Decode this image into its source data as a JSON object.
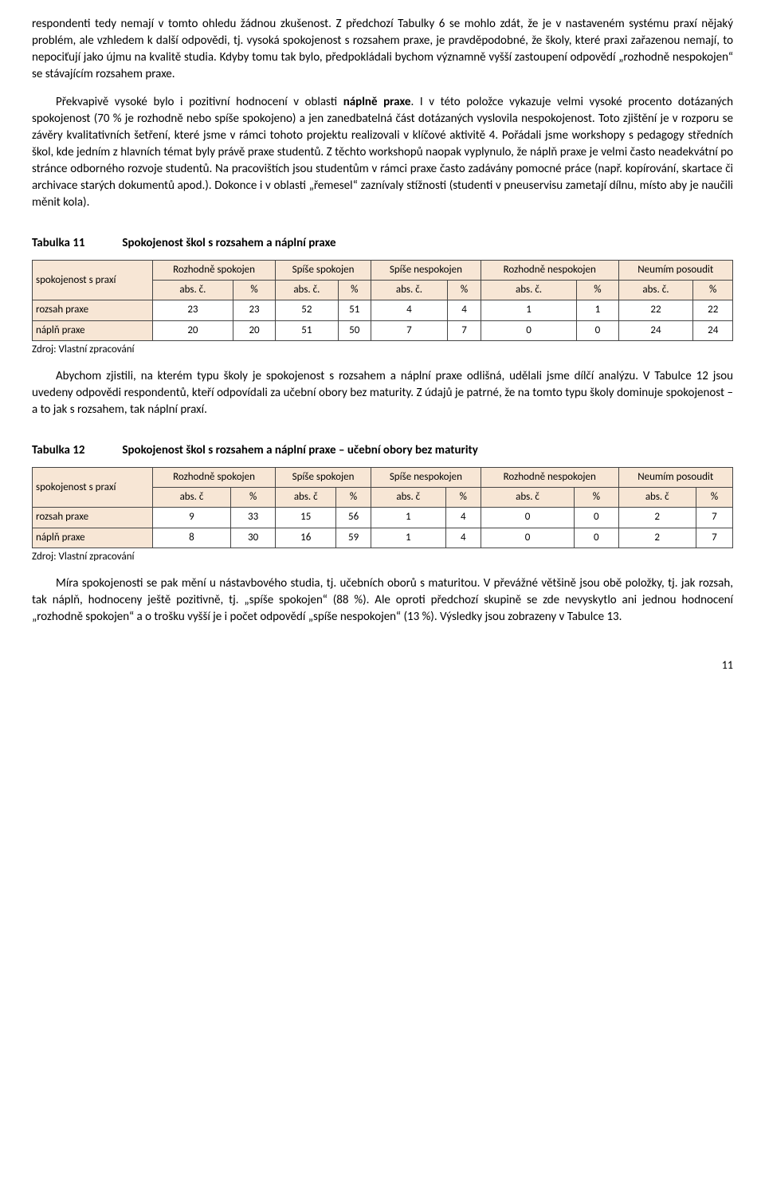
{
  "para1": "respondenti tedy nemají v tomto ohledu žádnou zkušenost. Z předchozí Tabulky 6 se mohlo zdát, že je v nastaveném systému praxí nějaký problém, ale vzhledem k další odpovědi, tj. vysoká spokojenost s rozsahem praxe, je pravděpodobné, že školy, které praxi zařazenou nemají, to nepociťují jako újmu na kvalitě studia. Kdyby tomu tak bylo, předpokládali bychom významně vyšší zastoupení odpovědí „rozhodně nespokojen“ se stávajícím rozsahem praxe.",
  "para2a": "Překvapivě vysoké bylo i pozitivní hodnocení v oblasti ",
  "para2b": "náplně praxe",
  "para2c": ". I v této položce vykazuje velmi vysoké procento dotázaných spokojenost (70 % je rozhodně nebo spíše spokojeno) a jen zanedbatelná část dotázaných vyslovila nespokojenost. Toto zjištění je v rozporu se závěry kvalitativních šetření, které jsme v rámci tohoto projektu realizovali v klíčové aktivitě 4. Pořádali jsme workshopy s pedagogy středních škol, kde jedním z hlavních témat byly právě praxe studentů. Z těchto workshopů naopak vyplynulo, že náplň praxe je velmi často neadekvátní po stránce odborného rozvoje studentů. Na pracovištích jsou studentům v rámci praxe často zadávány pomocné práce (např. kopírování, skartace či archivace starých dokumentů apod.). Dokonce i v oblasti „řemesel“ zaznívaly stížnosti (studenti v pneuservisu zametají dílnu, místo aby je naučili měnit kola).",
  "t11_num": "Tabulka 11",
  "t11_title": "Spokojenost škol s rozsahem a náplní praxe",
  "t11_corner": "spokojenost s praxí",
  "t11_cols": [
    "Rozhodně spokojen",
    "Spíše spokojen",
    "Spíše nespokojen",
    "Rozhodně nespokojen",
    "Neumím posoudit"
  ],
  "t11_sub_abs": "abs. č.",
  "t11_sub_pct": "%",
  "t11_rows": [
    {
      "label": "rozsah praxe",
      "v": [
        "23",
        "23",
        "52",
        "51",
        "4",
        "4",
        "1",
        "1",
        "22",
        "22"
      ]
    },
    {
      "label": "náplň praxe",
      "v": [
        "20",
        "20",
        "51",
        "50",
        "7",
        "7",
        "0",
        "0",
        "24",
        "24"
      ]
    }
  ],
  "t11_source": "Zdroj: Vlastní zpracování",
  "para3": "Abychom zjistili, na kterém typu školy je spokojenost s rozsahem a náplní praxe odlišná, udělali jsme dílčí analýzu.  V  Tabulce 12 jsou uvedeny odpovědi respondentů, kteří odpovídali za učební obory bez maturity. Z údajů je patrné, že na tomto typu školy dominuje spokojenost – a to jak s rozsahem, tak náplní praxí.",
  "t12_num": "Tabulka 12",
  "t12_title": "Spokojenost škol s rozsahem a náplní praxe – učební obory bez maturity",
  "t12_corner": "spokojenost s praxí",
  "t12_cols": [
    "Rozhodně spokojen",
    "Spíše spokojen",
    "Spíše nespokojen",
    "Rozhodně nespokojen",
    "Neumím posoudit"
  ],
  "t12_sub_abs": "abs. č",
  "t12_sub_pct": "%",
  "t12_rows": [
    {
      "label": "rozsah praxe",
      "v": [
        "9",
        "33",
        "15",
        "56",
        "1",
        "4",
        "0",
        "0",
        "2",
        "7"
      ]
    },
    {
      "label": "náplň praxe",
      "v": [
        "8",
        "30",
        "16",
        "59",
        "1",
        "4",
        "0",
        "0",
        "2",
        "7"
      ]
    }
  ],
  "t12_source": "Zdroj: Vlastní zpracování",
  "para4": "Míra spokojenosti se pak mění u nástavbového studia, tj. učebních oborů s maturitou. V převážné většině jsou obě položky, tj. jak rozsah, tak náplň, hodnoceny ještě pozitivně, tj. „spíše spokojen“ (88 %). Ale oproti předchozí skupině se zde nevyskytlo ani jednou hodnocení „rozhodně spokojen“ a o trošku vyšší je i počet odpovědí „spíše nespokojen“ (13 %). Výsledky jsou zobrazeny v Tabulce 13.",
  "pagenum": "11"
}
